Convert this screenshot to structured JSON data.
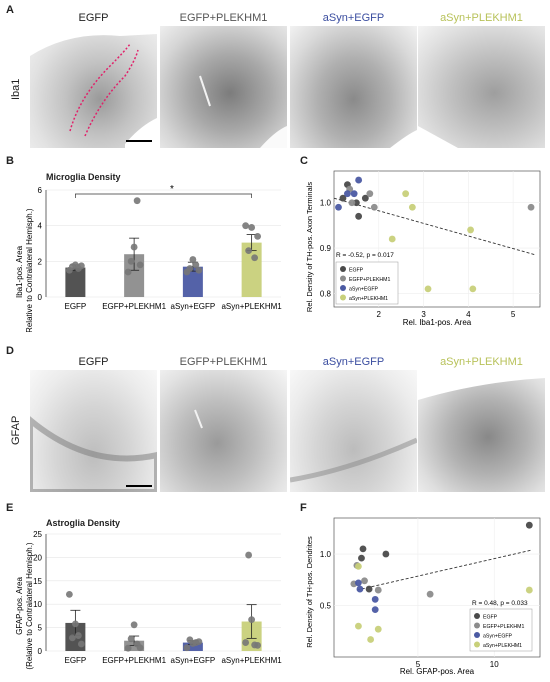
{
  "panels": {
    "A": {
      "letter": "A",
      "row_label": "Iba1",
      "columns": [
        {
          "title": "EGFP",
          "color": "#222222"
        },
        {
          "title": "EGFP+PLEKHM1",
          "color": "#555555"
        },
        {
          "title": "aSyn+EGFP",
          "color": "#3b4ea0"
        },
        {
          "title": "aSyn+PLEKHM1",
          "color": "#b8c25a"
        }
      ]
    },
    "B": {
      "letter": "B",
      "title": "Microglia Density",
      "ylabel_1": "Iba1-pos. Area",
      "ylabel_2": "(Relative to Contralateral Hemisph.)",
      "significance": "*"
    },
    "C": {
      "letter": "C",
      "xlabel": "Rel. Iba1-pos. Area",
      "ylabel": "Rel. Density of TH-pos. Axon Terminals",
      "stat": "R = -0.52, p = 0.017"
    },
    "D": {
      "letter": "D",
      "row_label": "GFAP",
      "columns": [
        {
          "title": "EGFP",
          "color": "#222222"
        },
        {
          "title": "EGFP+PLEKHM1",
          "color": "#555555"
        },
        {
          "title": "aSyn+EGFP",
          "color": "#3b4ea0"
        },
        {
          "title": "aSyn+PLEKHM1",
          "color": "#b8c25a"
        }
      ]
    },
    "E": {
      "letter": "E",
      "title": "Astroglia Density",
      "ylabel_1": "GFAP-pos. Area",
      "ylabel_2": "(Relative to Contralateral Hemisph.)"
    },
    "F": {
      "letter": "F",
      "xlabel": "Rel. GFAP-pos. Area",
      "ylabel": "Rel. Density of TH-pos. Dendrites",
      "stat": "R = 0.48, p = 0.033"
    }
  },
  "legend": [
    "EGFP",
    "EGFP+PLEKHM1",
    "aSyn+EGFP",
    "aSyn+PLEKHM1"
  ],
  "colors": {
    "EGFP": "#4a4a4a",
    "EGFP+PLEKHM1": "#8c8c8c",
    "aSyn+EGFP": "#4b5aa3",
    "aSyn+PLEKHM1": "#c8d07a",
    "points": "#777777"
  },
  "chart_data": [
    {
      "type": "bar",
      "id": "B",
      "categories": [
        "EGFP",
        "EGFP+PLEKHM1",
        "aSyn+EGFP",
        "aSyn+PLEKHM1"
      ],
      "values": [
        1.65,
        2.4,
        1.7,
        3.05
      ],
      "errors": [
        0.15,
        0.9,
        0.25,
        0.45
      ],
      "points": [
        [
          1.5,
          1.7,
          1.8,
          1.6,
          1.75
        ],
        [
          1.4,
          2.0,
          2.8,
          5.4,
          1.8
        ],
        [
          1.4,
          1.6,
          2.1,
          1.8,
          1.5
        ],
        [
          4.0,
          2.6,
          3.9,
          2.2,
          3.4
        ]
      ],
      "yticks": [
        0,
        2,
        4,
        6
      ],
      "ylim": [
        0,
        6
      ]
    },
    {
      "type": "scatter",
      "id": "C",
      "xticks": [
        2,
        3,
        4,
        5
      ],
      "yticks": [
        0.8,
        0.9,
        1.0
      ],
      "xlim": [
        1,
        5.6
      ],
      "ylim": [
        0.77,
        1.07
      ],
      "series": [
        {
          "name": "EGFP",
          "points": [
            [
              1.3,
              1.04
            ],
            [
              1.5,
              1.0
            ],
            [
              1.55,
              0.97
            ],
            [
              1.7,
              1.01
            ],
            [
              1.2,
              1.01
            ]
          ]
        },
        {
          "name": "EGFP+PLEKHM1",
          "points": [
            [
              1.35,
              1.03
            ],
            [
              1.8,
              1.02
            ],
            [
              5.4,
              0.99
            ],
            [
              1.4,
              1.0
            ],
            [
              1.9,
              0.99
            ]
          ]
        },
        {
          "name": "aSyn+EGFP",
          "points": [
            [
              1.55,
              1.05
            ],
            [
              1.1,
              0.99
            ],
            [
              1.45,
              1.02
            ],
            [
              1.3,
              1.02
            ]
          ]
        },
        {
          "name": "aSyn+PLEKHM1",
          "points": [
            [
              2.6,
              1.02
            ],
            [
              4.05,
              0.94
            ],
            [
              2.3,
              0.92
            ],
            [
              2.75,
              0.99
            ],
            [
              3.1,
              0.81
            ],
            [
              4.1,
              0.81
            ]
          ]
        }
      ],
      "trend": [
        [
          1,
          1.01
        ],
        [
          5.5,
          0.885
        ]
      ]
    },
    {
      "type": "bar",
      "id": "E",
      "categories": [
        "EGFP",
        "EGFP+PLEKHM1",
        "aSyn+EGFP",
        "aSyn+PLEKHM1"
      ],
      "values": [
        6.0,
        2.2,
        1.8,
        6.3
      ],
      "errors": [
        2.7,
        1.0,
        0.4,
        3.6
      ],
      "points": [
        [
          12.1,
          2.8,
          5.8,
          3.3,
          1.5
        ],
        [
          0.6,
          2.6,
          5.6,
          1.5,
          0.7
        ],
        [
          0.7,
          2.4,
          1.6,
          1.8,
          2.0
        ],
        [
          1.8,
          20.5,
          6.7,
          1.3,
          1.2
        ]
      ],
      "yticks": [
        0,
        5,
        10,
        15,
        20,
        25
      ],
      "ylim": [
        0,
        25
      ]
    },
    {
      "type": "scatter",
      "id": "F",
      "xticks": [
        5,
        10
      ],
      "yticks": [
        0.5,
        1.0
      ],
      "xlim": [
        -0.5,
        13
      ],
      "ylim": [
        0,
        1.35
      ],
      "series": [
        {
          "name": "EGFP",
          "points": [
            [
              1.4,
              1.05
            ],
            [
              2.9,
              1.0
            ],
            [
              1.8,
              0.66
            ],
            [
              12.3,
              1.28
            ],
            [
              1.3,
              0.96
            ]
          ]
        },
        {
          "name": "EGFP+PLEKHM1",
          "points": [
            [
              1.0,
              0.89
            ],
            [
              5.8,
              0.61
            ],
            [
              0.8,
              0.71
            ],
            [
              1.5,
              0.74
            ],
            [
              2.4,
              0.65
            ]
          ]
        },
        {
          "name": "aSyn+EGFP",
          "points": [
            [
              1.1,
              0.72
            ],
            [
              2.2,
              0.46
            ],
            [
              1.2,
              0.66
            ],
            [
              2.2,
              0.56
            ]
          ]
        },
        {
          "name": "aSyn+PLEKHM1",
          "points": [
            [
              1.1,
              0.3
            ],
            [
              12.3,
              0.65
            ],
            [
              1.9,
              0.17
            ],
            [
              1.1,
              0.88
            ],
            [
              2.4,
              0.27
            ]
          ]
        }
      ],
      "trend": [
        [
          1.0,
          0.65
        ],
        [
          12.5,
          1.04
        ]
      ]
    }
  ]
}
